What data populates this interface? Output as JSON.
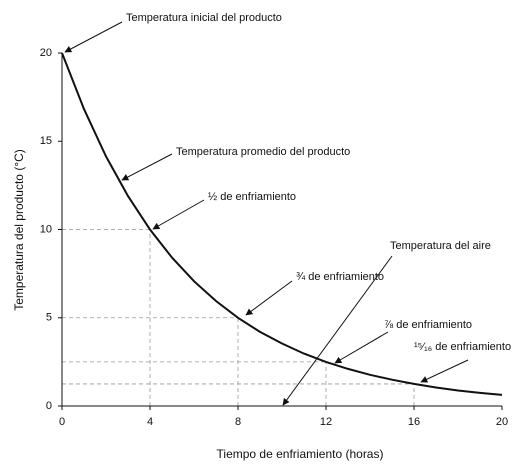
{
  "chart_data": {
    "type": "line",
    "xlabel": "Tiempo de enfriamiento (horas)",
    "ylabel": "Temperatura del producto (°C)",
    "x": [
      0,
      1,
      2,
      3,
      4,
      5,
      6,
      7,
      8,
      9,
      10,
      11,
      12,
      13,
      14,
      15,
      16,
      17,
      18,
      19,
      20
    ],
    "series": [
      {
        "name": null,
        "color": "#111111",
        "values": [
          20,
          16.82,
          14.14,
          11.89,
          10,
          8.41,
          7.07,
          5.95,
          5,
          4.2,
          3.54,
          2.97,
          2.5,
          2.1,
          1.77,
          1.49,
          1.25,
          1.05,
          0.88,
          0.74,
          0.63
        ]
      }
    ],
    "xlim": [
      0,
      20
    ],
    "xticks": [
      0,
      4,
      8,
      12,
      16,
      20
    ],
    "ylim": [
      0,
      20
    ],
    "yticks": [
      0,
      5,
      10,
      15,
      20
    ],
    "annotations": [
      "Temperatura inicial del producto",
      "Temperatura promedio del producto",
      "½ de enfriamiento",
      "¾ de enfriamiento",
      "⅞ de enfriamiento",
      "¹⁵⁄₁₆ de enfriamiento",
      "Temperatura del aire"
    ]
  }
}
